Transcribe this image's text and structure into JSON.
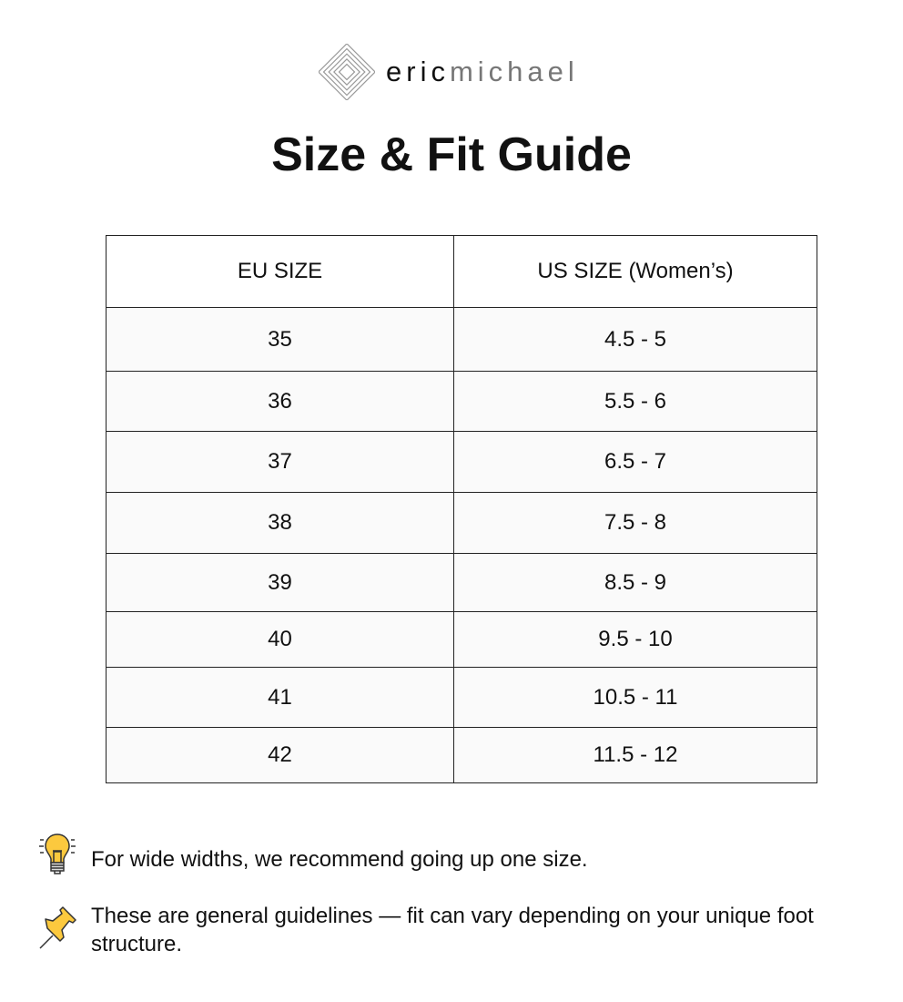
{
  "logo": {
    "bold": "eric",
    "light": "michael"
  },
  "title": "Size & Fit Guide",
  "table": {
    "headers": [
      "EU SIZE",
      "US SIZE (Women’s)"
    ],
    "rows": [
      [
        "35",
        "4.5 - 5"
      ],
      [
        "36",
        "5.5 - 6"
      ],
      [
        "37",
        "6.5 - 7"
      ],
      [
        "38",
        "7.5 - 8"
      ],
      [
        "39",
        "8.5 - 9"
      ],
      [
        "40",
        "9.5 - 10"
      ],
      [
        "41",
        "10.5 - 11"
      ],
      [
        "42",
        "11.5 - 12"
      ]
    ]
  },
  "notes": [
    {
      "icon": "lightbulb-icon",
      "text": "For wide widths, we recommend going up one size."
    },
    {
      "icon": "pushpin-icon",
      "text": "These are general guidelines — fit can vary depending on your unique foot structure."
    }
  ]
}
